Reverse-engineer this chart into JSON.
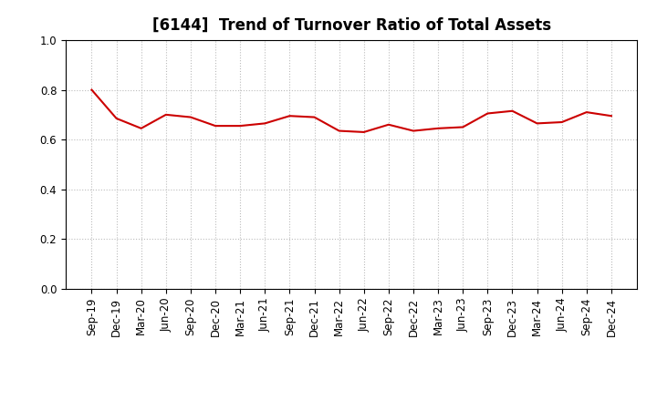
{
  "title": "[6144]  Trend of Turnover Ratio of Total Assets",
  "labels": [
    "Sep-19",
    "Dec-19",
    "Mar-20",
    "Jun-20",
    "Sep-20",
    "Dec-20",
    "Mar-21",
    "Jun-21",
    "Sep-21",
    "Dec-21",
    "Mar-22",
    "Jun-22",
    "Sep-22",
    "Dec-22",
    "Mar-23",
    "Jun-23",
    "Sep-23",
    "Dec-23",
    "Mar-24",
    "Jun-24",
    "Sep-24",
    "Dec-24"
  ],
  "values": [
    0.8,
    0.685,
    0.645,
    0.7,
    0.69,
    0.655,
    0.655,
    0.665,
    0.695,
    0.69,
    0.635,
    0.63,
    0.66,
    0.635,
    0.645,
    0.65,
    0.705,
    0.715,
    0.665,
    0.67,
    0.71,
    0.695
  ],
  "line_color": "#cc0000",
  "background_color": "#ffffff",
  "ylim": [
    0.0,
    1.0
  ],
  "yticks": [
    0.0,
    0.2,
    0.4,
    0.6,
    0.8,
    1.0
  ],
  "grid_color": "#bbbbbb",
  "title_fontsize": 12,
  "tick_fontsize": 8.5,
  "line_width": 1.5
}
